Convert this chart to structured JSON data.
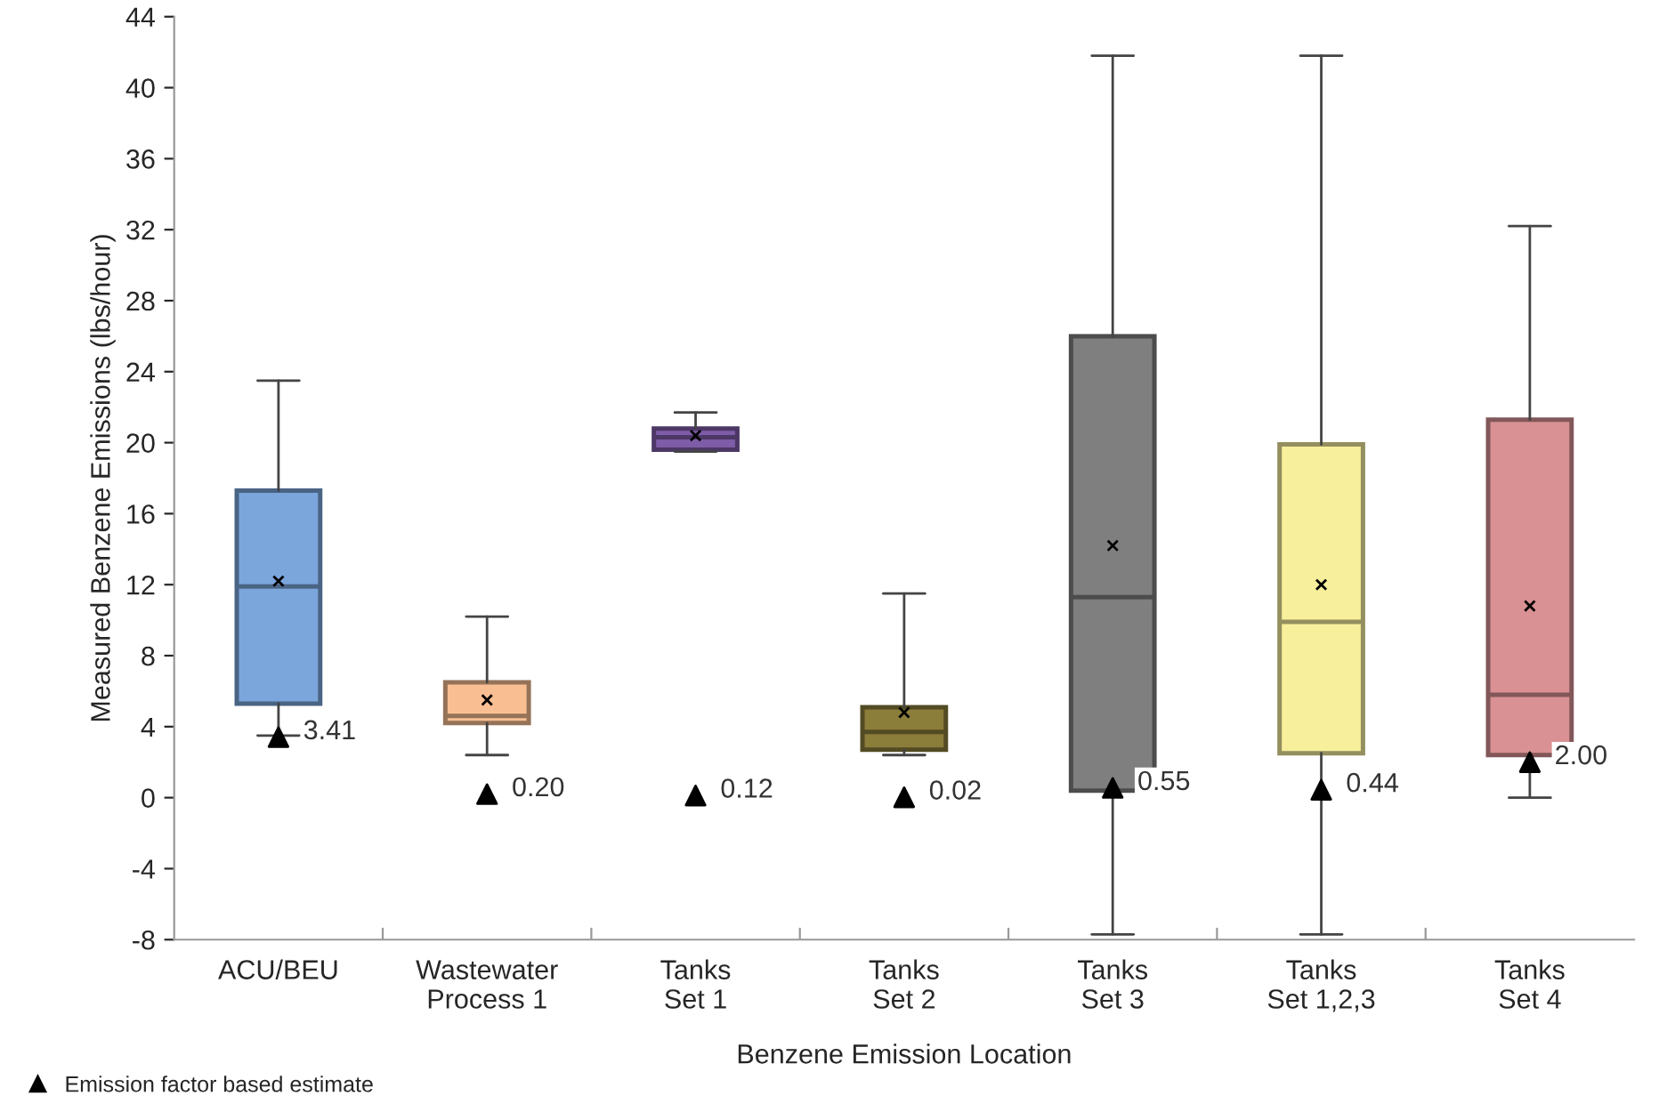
{
  "chart_data": {
    "type": "box",
    "xlabel": "Benzene Emission Location",
    "ylabel": "Measured Benzene Emissions (lbs/hour)",
    "categories": [
      "ACU/BEU",
      "Wastewater\nProcess 1",
      "Tanks\nSet 1",
      "Tanks\nSet 2",
      "Tanks\nSet 3",
      "Tanks\nSet 1,2,3",
      "Tanks\nSet 4"
    ],
    "colors": [
      "#7ba6dc",
      "#f9bf93",
      "#7e5ca8",
      "#8b7d3a",
      "#7f7f7f",
      "#f7ef9c",
      "#d99194"
    ],
    "boxes": [
      {
        "low": 3.5,
        "q1": 5.3,
        "median": 11.9,
        "q3": 17.3,
        "high": 23.5,
        "mean": 12.2
      },
      {
        "low": 2.4,
        "q1": 4.2,
        "median": 4.6,
        "q3": 6.5,
        "high": 10.2,
        "mean": 5.5
      },
      {
        "low": 19.5,
        "q1": 19.6,
        "median": 20.3,
        "q3": 20.8,
        "high": 21.7,
        "mean": 20.4
      },
      {
        "low": 2.4,
        "q1": 2.7,
        "median": 3.7,
        "q3": 5.1,
        "high": 11.5,
        "mean": 4.8
      },
      {
        "low": -7.7,
        "q1": 0.4,
        "median": 11.3,
        "q3": 26.0,
        "high": 41.8,
        "mean": 14.2
      },
      {
        "low": -7.7,
        "q1": 2.5,
        "median": 9.9,
        "q3": 19.9,
        "high": 41.8,
        "mean": 12.0
      },
      {
        "low": 0.0,
        "q1": 2.4,
        "median": 5.8,
        "q3": 21.3,
        "high": 32.2,
        "mean": 10.8
      }
    ],
    "series": [
      {
        "type": "scatter",
        "name": "Emission factor based estimate",
        "color": "#000000",
        "marker": "triangle",
        "x": [
          "ACU/BEU",
          "Wastewater\nProcess 1",
          "Tanks\nSet 1",
          "Tanks\nSet 2",
          "Tanks\nSet 3",
          "Tanks\nSet 1,2,3",
          "Tanks\nSet 4"
        ],
        "values": [
          3.41,
          0.2,
          0.12,
          0.02,
          0.55,
          0.44,
          2.0
        ],
        "value_labels": [
          "3.41",
          "0.20",
          "0.12",
          "0.02",
          "0.55",
          "0.44",
          "2.00"
        ]
      }
    ],
    "ylim": [
      -8,
      44
    ],
    "yticks": [
      -8,
      -4,
      0,
      4,
      8,
      12,
      16,
      20,
      24,
      28,
      32,
      36,
      40,
      44
    ],
    "grid": false,
    "legend": "bottom left"
  }
}
